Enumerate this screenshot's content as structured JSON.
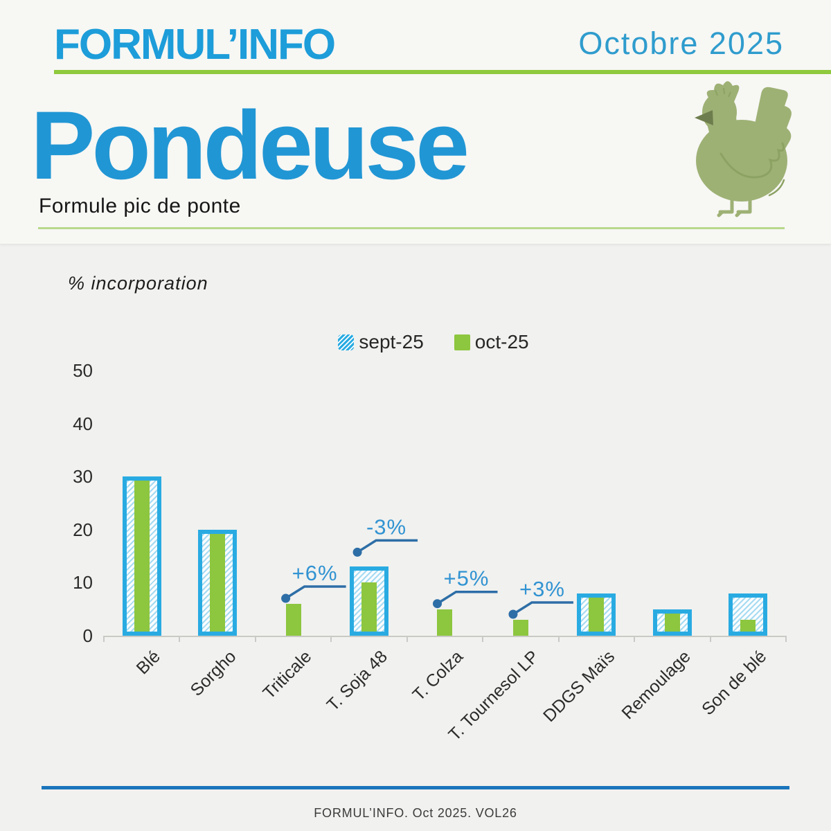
{
  "header": {
    "brand": "FORMUL’INFO",
    "issue": "Octobre 2025",
    "title": "Pondeuse",
    "subtitle": "Formule pic de ponte"
  },
  "illustration": {
    "name": "hen",
    "color": "#9eb175",
    "beak_color": "#6e7d4d",
    "wing_stroke": "#8ca263"
  },
  "chart": {
    "axis_title": "% incorporation"
  },
  "chart_data": {
    "type": "bar",
    "title": "",
    "xlabel": "",
    "ylabel": "% incorporation",
    "ylim": [
      0,
      50
    ],
    "yticks": [
      0,
      10,
      20,
      30,
      40,
      50
    ],
    "grid": false,
    "legend_position": "top-center",
    "categories": [
      "Blé",
      "Sorgho",
      "Triticale",
      "T. Soja 48",
      "T. Colza",
      "T. Tournesol LP",
      "DDGS Maïs",
      "Remoulage",
      "Son de blé"
    ],
    "series": [
      {
        "name": "sept-25",
        "style": "blue-outlined-hatched",
        "color": "#29abe2",
        "values": [
          30,
          20,
          0,
          13,
          0,
          0,
          8,
          5,
          8
        ]
      },
      {
        "name": "oct-25",
        "style": "solid-green",
        "color": "#8dc63f",
        "values": [
          30,
          20,
          6,
          10,
          5,
          3,
          8,
          5,
          3
        ]
      }
    ],
    "annotations": [
      {
        "category": "Triticale",
        "label": "+6%"
      },
      {
        "category": "T. Soja 48",
        "label": "-3%"
      },
      {
        "category": "T. Colza",
        "label": "+5%"
      },
      {
        "category": "T. Tournesol LP",
        "label": "+3%"
      }
    ]
  },
  "colors": {
    "bar_blue": "#29abe2",
    "bar_green": "#8dc63f",
    "brand_blue": "#1d9dd9",
    "issue_blue": "#2f9ccd",
    "green_rule": "#8fc93d",
    "annotation_line": "#2d6ea6",
    "annotation_text": "#3193d2",
    "footer_line": "#1b75bc"
  },
  "footer": {
    "text": "FORMUL’INFO. Oct 2025. VOL26"
  }
}
